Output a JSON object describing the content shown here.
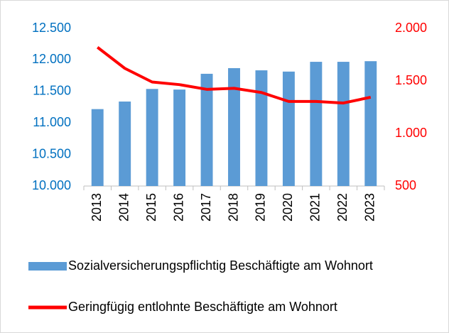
{
  "chart_data": {
    "type": "bar",
    "categories": [
      "2013",
      "2014",
      "2015",
      "2016",
      "2017",
      "2018",
      "2019",
      "2020",
      "2021",
      "2022",
      "2023"
    ],
    "series": [
      {
        "name": "Sozialversicherungspflichtig Beschäftigte am Wohnort",
        "type": "bar",
        "color": "#5b9bd5",
        "values": [
          11220,
          11340,
          11540,
          11530,
          11780,
          11870,
          11835,
          11815,
          11970,
          11970,
          11980
        ]
      },
      {
        "name": "Geringfügig entlohnte Beschäftigte am Wohnort",
        "type": "line",
        "color": "#ff0000",
        "axis": "y2",
        "values": [
          1820,
          1620,
          1490,
          1465,
          1420,
          1430,
          1390,
          1305,
          1305,
          1290,
          1345
        ]
      }
    ],
    "ylim": [
      10000,
      12500
    ],
    "yticks": [
      {
        "value": 10000,
        "label": "10.000"
      },
      {
        "value": 10500,
        "label": "10.500"
      },
      {
        "value": 11000,
        "label": "11.000"
      },
      {
        "value": 11500,
        "label": "11.500"
      },
      {
        "value": 12000,
        "label": "12.000"
      },
      {
        "value": 12500,
        "label": "12.500"
      }
    ],
    "y2lim": [
      500,
      2000
    ],
    "y2ticks": [
      500,
      {
        "value": 1000,
        "label": "1.000"
      },
      {
        "value": 1500,
        "label": "1.500"
      },
      {
        "value": 2000,
        "label": "2.000"
      }
    ],
    "ytick_color": "#0070c0",
    "y2tick_color": "#ff0000",
    "grid": false,
    "legend": "bottom"
  }
}
